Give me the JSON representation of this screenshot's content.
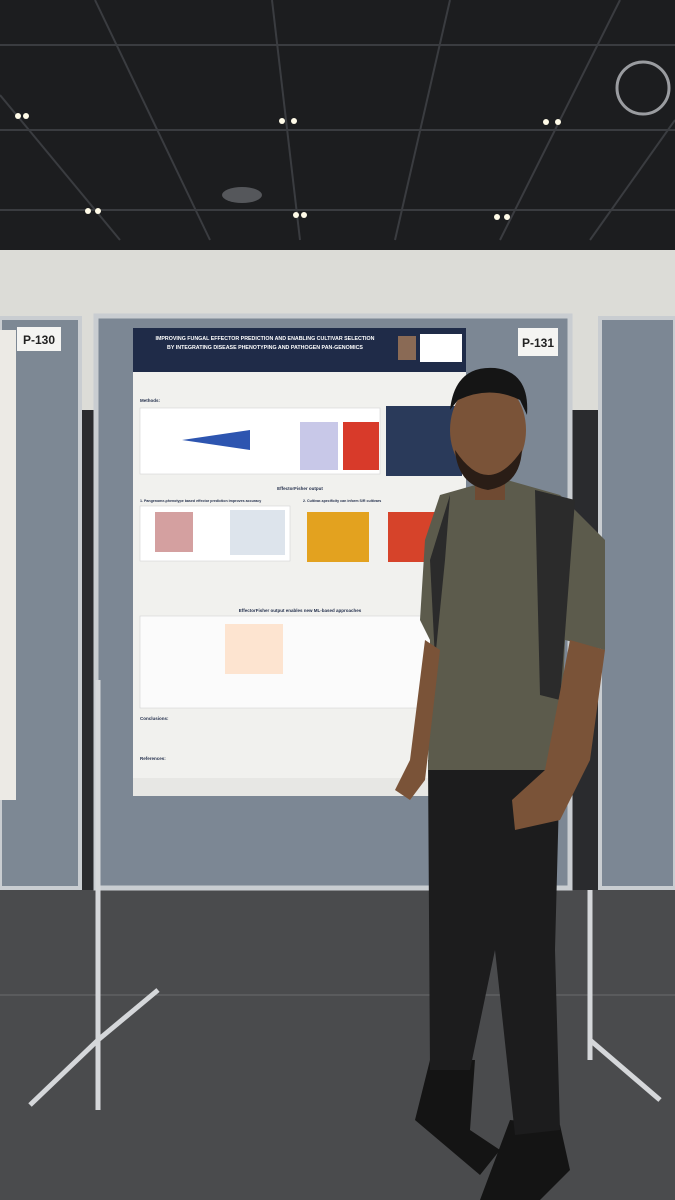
{
  "signs": [
    "P-130",
    "P-131"
  ],
  "poster": {
    "title": [
      "IMPROVING FUNGAL EFFECTOR PREDICTION AND ENABLING CULTIVAR SELECTION",
      "BY INTEGRATING DISEASE PHENOTYPING AND PATHOGEN PAN-GENOMICS"
    ],
    "methods": "Methods:",
    "output": "EffectorFisher output",
    "section1": "1. Pangenome-phenotype based effector prediction improves accuracy",
    "section2": "2. Cultivar-specificity can inform S/R cultivars",
    "ml": "EffectorFisher output enables new ML-based approaches",
    "conclusions": "Conclusions:",
    "references": "References:"
  }
}
